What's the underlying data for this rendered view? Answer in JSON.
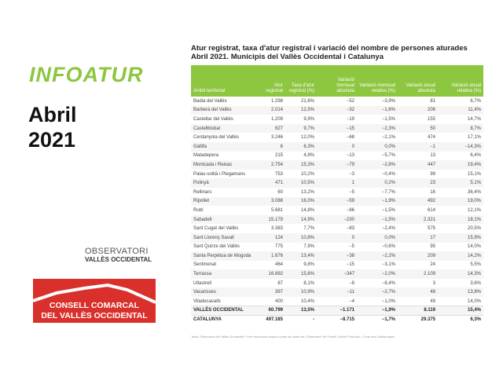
{
  "brand": {
    "title": "INFOATUR",
    "month": "Abril",
    "year": "2021",
    "accent": "#8dc63f"
  },
  "logos": {
    "observatori_1": "OBSERVATORI",
    "observatori_2": "VALLÈS OCCIDENTAL",
    "consell_1": "CONSELL COMARCAL",
    "consell_2": "DEL VALLÈS OCCIDENTAL"
  },
  "table": {
    "title_1": "Atur registrat, taxa d'atur registral i variació del nombre de persones aturades",
    "title_2": "Abril 2021. Municipis del Vallès Occidental i Catalunya",
    "headers": [
      "Àmbit territorial",
      "Atur registrat",
      "Taxa d'atur registral (%)",
      "Variació mensual absoluta",
      "Variació mensual relativa (%)",
      "Variació anual absoluta",
      "Variació anual relativa (%)"
    ],
    "rows": [
      [
        "Badia del Vallès",
        "1.298",
        "21,6%",
        "−52",
        "−3,9%",
        "81",
        "6,7%"
      ],
      [
        "Barberà del Vallès",
        "2.014",
        "12,5%",
        "−32",
        "−1,6%",
        "206",
        "11,4%"
      ],
      [
        "Castellar del Vallès",
        "1.209",
        "9,9%",
        "−19",
        "−1,5%",
        "155",
        "14,7%"
      ],
      [
        "Castellbisbal",
        "627",
        "9,7%",
        "−15",
        "−2,3%",
        "50",
        "8,7%"
      ],
      [
        "Cerdanyola del Vallès",
        "3.246",
        "12,0%",
        "−68",
        "−2,1%",
        "474",
        "17,1%"
      ],
      [
        "Gallifa",
        "6",
        "6,3%",
        "0",
        "0,0%",
        "−1",
        "−14,3%"
      ],
      [
        "Matadepera",
        "215",
        "4,8%",
        "−13",
        "−5,7%",
        "13",
        "6,4%"
      ],
      [
        "Montcada i Reixac",
        "2.754",
        "15,3%",
        "−79",
        "−2,8%",
        "447",
        "19,4%"
      ],
      [
        "Palau-solità i Plegamans",
        "753",
        "10,2%",
        "−3",
        "−0,4%",
        "99",
        "15,1%"
      ],
      [
        "Polinyà",
        "471",
        "10,5%",
        "1",
        "0,2%",
        "23",
        "5,1%"
      ],
      [
        "Rellinars",
        "60",
        "13,2%",
        "−5",
        "−7,7%",
        "16",
        "36,4%"
      ],
      [
        "Ripollet",
        "3.088",
        "16,0%",
        "−59",
        "−1,9%",
        "492",
        "19,0%"
      ],
      [
        "Rubí",
        "5.681",
        "14,8%",
        "−86",
        "−1,5%",
        "614",
        "12,1%"
      ],
      [
        "Sabadell",
        "15.179",
        "14,9%",
        "−230",
        "−1,5%",
        "2.321",
        "18,1%"
      ],
      [
        "Sant Cugat del Vallès",
        "3.383",
        "7,7%",
        "−83",
        "−2,4%",
        "575",
        "20,5%"
      ],
      [
        "Sant Llorenç Savall",
        "124",
        "10,8%",
        "0",
        "0,0%",
        "17",
        "15,9%"
      ],
      [
        "Sant Quirze del Vallès",
        "775",
        "7,9%",
        "−5",
        "−0,6%",
        "95",
        "14,0%"
      ],
      [
        "Santa Perpètua de Mogoda",
        "1.676",
        "13,4%",
        "−38",
        "−2,2%",
        "209",
        "14,2%"
      ],
      [
        "Sentmenat",
        "464",
        "9,8%",
        "−15",
        "−3,1%",
        "24",
        "5,5%"
      ],
      [
        "Terrassa",
        "16.892",
        "15,6%",
        "−347",
        "−2,0%",
        "2.109",
        "14,3%"
      ],
      [
        "Ullastrell",
        "87",
        "8,1%",
        "−8",
        "−8,4%",
        "3",
        "3,6%"
      ],
      [
        "Vacarisses",
        "397",
        "10,9%",
        "−11",
        "−2,7%",
        "48",
        "13,8%"
      ],
      [
        "Viladecavalls",
        "400",
        "10,4%",
        "−4",
        "−1,0%",
        "49",
        "14,0%"
      ]
    ],
    "totals": [
      [
        "VALLÈS OCCIDENTAL",
        "60.799",
        "13,5%",
        "−1.171",
        "−1,9%",
        "8.119",
        "15,4%"
      ],
      [
        "CATALUNYA",
        "497.185",
        "-",
        "−8.715",
        "−1,7%",
        "29.375",
        "6,3%"
      ]
    ],
    "footnote": "Taula: Observatori del Vallès Occidental • Font: elaboració pròpia a partir de dades de l'Observatori del Treball i Model Productiu • Creat amb Datawrapper"
  }
}
